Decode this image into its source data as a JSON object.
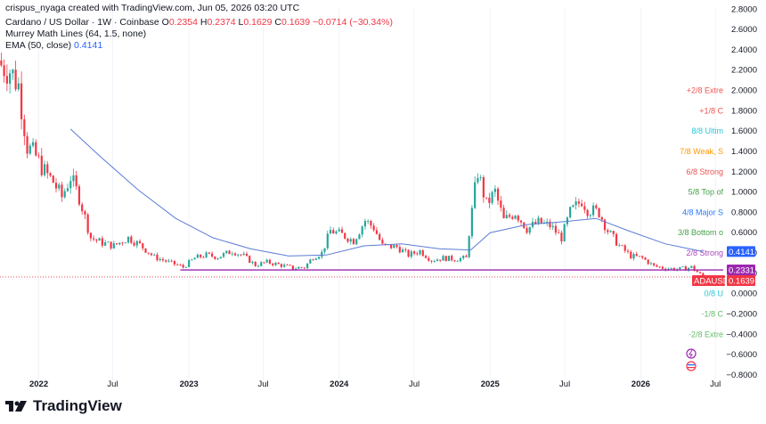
{
  "header": {
    "created_by": "crispus_nyaga created with TradingView.com, Jun 05, 2026 03:20 UTC",
    "symbol": "Cardano / US Dollar · 1W · Coinbase",
    "o_label": "O",
    "o_value": "0.2354",
    "h_label": "H",
    "h_value": "0.2374",
    "l_label": "L",
    "l_value": "0.1629",
    "c_label": "C",
    "c_value": "0.1639",
    "change": "−0.0714 (−30.34%)",
    "murrey": "Murrey Math Lines (64, 1.5, none)",
    "ema_label": "EMA (50, close)",
    "ema_value": "0.4141"
  },
  "logo": {
    "text": "TradingView"
  },
  "colors": {
    "up": "#26a69a",
    "down": "#f23645",
    "ema": "#5b7cd6",
    "support": "#9c27b0",
    "last_price": "#f23645"
  },
  "chart_data": {
    "type": "candlestick",
    "yaxis_ticks": [
      "2.8000",
      "2.6000",
      "2.4000",
      "2.2000",
      "2.0000",
      "1.8000",
      "1.6000",
      "1.4000",
      "1.2000",
      "1.0000",
      "0.8000",
      "0.6000",
      "0.4000",
      "0.2000",
      "0.0000",
      "−0.2000",
      "−0.4000",
      "−0.6000",
      "−0.8000"
    ],
    "ylim": [
      -0.88,
      2.82
    ],
    "xaxis_labels": [
      "2022",
      "Jul",
      "2023",
      "Jul",
      "2024",
      "Jul",
      "2025",
      "Jul",
      "2026",
      "Jul"
    ],
    "xlim": [
      "2021-10-01",
      "2026-07-20"
    ],
    "price_series": [
      {
        "date": "2021-10-04",
        "close": 2.25
      },
      {
        "date": "2021-10-25",
        "close": 2.2
      },
      {
        "date": "2021-11-15",
        "close": 2.05
      },
      {
        "date": "2021-12-06",
        "close": 1.45
      },
      {
        "date": "2021-12-27",
        "close": 1.35
      },
      {
        "date": "2022-01-17",
        "close": 1.2
      },
      {
        "date": "2022-02-07",
        "close": 1.1
      },
      {
        "date": "2022-02-28",
        "close": 0.95
      },
      {
        "date": "2022-03-21",
        "close": 1.15
      },
      {
        "date": "2022-04-11",
        "close": 0.95
      },
      {
        "date": "2022-05-09",
        "close": 0.55
      },
      {
        "date": "2022-06-06",
        "close": 0.5
      },
      {
        "date": "2022-07-04",
        "close": 0.47
      },
      {
        "date": "2022-08-08",
        "close": 0.55
      },
      {
        "date": "2022-09-05",
        "close": 0.48
      },
      {
        "date": "2022-10-10",
        "close": 0.36
      },
      {
        "date": "2022-11-14",
        "close": 0.31
      },
      {
        "date": "2022-12-19",
        "close": 0.26
      },
      {
        "date": "2023-01-16",
        "close": 0.35
      },
      {
        "date": "2023-02-13",
        "close": 0.38
      },
      {
        "date": "2023-03-13",
        "close": 0.36
      },
      {
        "date": "2023-04-17",
        "close": 0.42
      },
      {
        "date": "2023-05-15",
        "close": 0.37
      },
      {
        "date": "2023-06-12",
        "close": 0.28
      },
      {
        "date": "2023-07-10",
        "close": 0.31
      },
      {
        "date": "2023-08-14",
        "close": 0.28
      },
      {
        "date": "2023-09-11",
        "close": 0.25
      },
      {
        "date": "2023-10-09",
        "close": 0.26
      },
      {
        "date": "2023-10-30",
        "close": 0.36
      },
      {
        "date": "2023-11-20",
        "close": 0.4
      },
      {
        "date": "2023-12-11",
        "close": 0.62
      },
      {
        "date": "2024-01-08",
        "close": 0.58
      },
      {
        "date": "2024-02-05",
        "close": 0.52
      },
      {
        "date": "2024-03-04",
        "close": 0.72
      },
      {
        "date": "2024-03-25",
        "close": 0.65
      },
      {
        "date": "2024-04-15",
        "close": 0.47
      },
      {
        "date": "2024-05-20",
        "close": 0.46
      },
      {
        "date": "2024-06-17",
        "close": 0.38
      },
      {
        "date": "2024-07-15",
        "close": 0.42
      },
      {
        "date": "2024-08-12",
        "close": 0.33
      },
      {
        "date": "2024-09-09",
        "close": 0.35
      },
      {
        "date": "2024-10-07",
        "close": 0.34
      },
      {
        "date": "2024-11-04",
        "close": 0.35
      },
      {
        "date": "2024-11-11",
        "close": 0.6
      },
      {
        "date": "2024-11-25",
        "close": 1.02
      },
      {
        "date": "2024-12-02",
        "close": 1.2
      },
      {
        "date": "2024-12-23",
        "close": 0.88
      },
      {
        "date": "2025-01-13",
        "close": 1.0
      },
      {
        "date": "2025-02-03",
        "close": 0.72
      },
      {
        "date": "2025-03-03",
        "close": 0.8
      },
      {
        "date": "2025-03-31",
        "close": 0.64
      },
      {
        "date": "2025-04-28",
        "close": 0.7
      },
      {
        "date": "2025-05-26",
        "close": 0.67
      },
      {
        "date": "2025-06-23",
        "close": 0.55
      },
      {
        "date": "2025-07-14",
        "close": 0.8
      },
      {
        "date": "2025-08-11",
        "close": 0.92
      },
      {
        "date": "2025-08-25",
        "close": 0.83
      },
      {
        "date": "2025-09-22",
        "close": 0.8
      },
      {
        "date": "2025-10-13",
        "close": 0.62
      },
      {
        "date": "2025-11-10",
        "close": 0.47
      },
      {
        "date": "2025-12-08",
        "close": 0.37
      },
      {
        "date": "2026-01-05",
        "close": 0.35
      },
      {
        "date": "2026-02-02",
        "close": 0.27
      },
      {
        "date": "2026-03-02",
        "close": 0.25
      },
      {
        "date": "2026-04-06",
        "close": 0.24
      },
      {
        "date": "2026-05-04",
        "close": 0.26
      },
      {
        "date": "2026-06-01",
        "close": 0.1639
      }
    ],
    "ema_series": [
      {
        "date": "2022-03-21",
        "value": 1.62
      },
      {
        "date": "2022-06-01",
        "value": 1.35
      },
      {
        "date": "2022-09-01",
        "value": 1.02
      },
      {
        "date": "2022-12-01",
        "value": 0.74
      },
      {
        "date": "2023-03-01",
        "value": 0.55
      },
      {
        "date": "2023-06-01",
        "value": 0.44
      },
      {
        "date": "2023-09-01",
        "value": 0.37
      },
      {
        "date": "2023-12-01",
        "value": 0.38
      },
      {
        "date": "2024-03-01",
        "value": 0.47
      },
      {
        "date": "2024-06-01",
        "value": 0.49
      },
      {
        "date": "2024-09-01",
        "value": 0.44
      },
      {
        "date": "2024-11-15",
        "value": 0.43
      },
      {
        "date": "2025-01-01",
        "value": 0.6
      },
      {
        "date": "2025-04-01",
        "value": 0.68
      },
      {
        "date": "2025-07-01",
        "value": 0.71
      },
      {
        "date": "2025-09-15",
        "value": 0.74
      },
      {
        "date": "2025-12-01",
        "value": 0.62
      },
      {
        "date": "2026-03-01",
        "value": 0.49
      },
      {
        "date": "2026-06-01",
        "value": 0.4141
      }
    ],
    "support_line": {
      "from": "2022-12-12",
      "to": "2026-07-20",
      "value": 0.2331
    },
    "murrey_labels": [
      {
        "text": "+2/8 Extre",
        "value": 2.0,
        "color": "#ef5350"
      },
      {
        "text": "+1/8 C",
        "value": 1.8,
        "color": "#ef5350"
      },
      {
        "text": "8/8 Ultim",
        "value": 1.6,
        "color": "#26c6da"
      },
      {
        "text": "7/8 Weak, S",
        "value": 1.4,
        "color": "#ff9800"
      },
      {
        "text": "6/8 Strong",
        "value": 1.2,
        "color": "#ef5350"
      },
      {
        "text": "5/8 Top of",
        "value": 1.0,
        "color": "#43a047"
      },
      {
        "text": "4/8 Major S",
        "value": 0.8,
        "color": "#2979ff"
      },
      {
        "text": "3/8 Bottom o",
        "value": 0.6,
        "color": "#43a047"
      },
      {
        "text": "2/8 Strong",
        "value": 0.4,
        "color": "#ab47bc"
      },
      {
        "text": "0/8 U",
        "value": 0.0,
        "color": "#26c6da"
      },
      {
        "text": "-1/8 C",
        "value": -0.2,
        "color": "#66bb6a"
      },
      {
        "text": "-2/8 Extre",
        "value": -0.4,
        "color": "#66bb6a"
      }
    ],
    "price_tags": [
      {
        "text": "0.4141",
        "value": 0.4141,
        "color": "#2962ff"
      },
      {
        "text": "0.2331",
        "value": 0.2331,
        "color": "#9c27b0"
      },
      {
        "text": "ADAUSD",
        "value": 0.18,
        "color": "#f23645"
      },
      {
        "text": "0.1639",
        "value": 0.1639,
        "color": "#f23645"
      }
    ]
  }
}
